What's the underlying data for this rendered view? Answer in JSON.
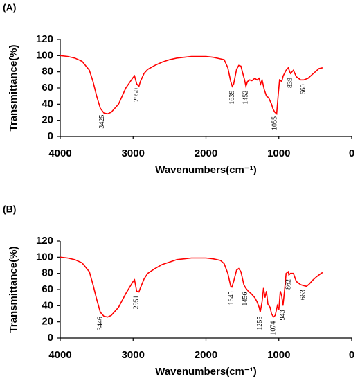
{
  "chart_data": [
    {
      "type": "line",
      "title": "(A)",
      "xlabel": "Wavenumbers(cm⁻¹)",
      "ylabel": "Transmittance(%)",
      "xlim": [
        4000,
        0
      ],
      "ylim": [
        0,
        120
      ],
      "xticks": [
        4000,
        3000,
        2000,
        1000,
        0
      ],
      "yticks": [
        0,
        20,
        40,
        60,
        80,
        100,
        120
      ],
      "grid": false,
      "color": "#ff0000",
      "x": [
        4000,
        3900,
        3800,
        3700,
        3600,
        3550,
        3500,
        3450,
        3400,
        3350,
        3300,
        3200,
        3100,
        3000,
        2980,
        2950,
        2920,
        2900,
        2850,
        2800,
        2700,
        2600,
        2500,
        2400,
        2300,
        2200,
        2000,
        1900,
        1800,
        1750,
        1700,
        1660,
        1639,
        1620,
        1580,
        1550,
        1520,
        1500,
        1470,
        1452,
        1430,
        1400,
        1370,
        1330,
        1300,
        1270,
        1250,
        1230,
        1200,
        1170,
        1140,
        1120,
        1100,
        1080,
        1055,
        1030,
        1010,
        990,
        960,
        940,
        900,
        870,
        850,
        839,
        800,
        760,
        700,
        660,
        600,
        550,
        500,
        450,
        400
      ],
      "values": [
        100,
        99,
        97,
        93,
        82,
        68,
        50,
        35,
        29,
        28,
        30,
        40,
        60,
        73,
        75,
        65,
        62,
        68,
        78,
        83,
        88,
        92,
        95,
        97,
        98,
        99,
        99,
        98,
        96,
        95,
        85,
        68,
        62,
        65,
        83,
        88,
        87,
        80,
        70,
        62,
        68,
        70,
        69,
        72,
        70,
        72,
        65,
        70,
        58,
        50,
        48,
        44,
        40,
        34,
        30,
        28,
        50,
        70,
        68,
        75,
        82,
        85,
        80,
        78,
        82,
        74,
        70,
        70,
        72,
        76,
        80,
        84,
        85
      ],
      "peak_labels": [
        3425,
        2950,
        1639,
        1452,
        1055,
        839,
        660
      ]
    },
    {
      "type": "line",
      "title": "(B)",
      "xlabel": "Wavenumbers(cm⁻¹)",
      "ylabel": "Transmittance(%)",
      "xlim": [
        4000,
        0
      ],
      "ylim": [
        0,
        120
      ],
      "xticks": [
        4000,
        3000,
        2000,
        1000,
        0
      ],
      "yticks": [
        0,
        20,
        40,
        60,
        80,
        100,
        120
      ],
      "grid": false,
      "color": "#ff0000",
      "x": [
        4000,
        3900,
        3800,
        3700,
        3600,
        3550,
        3500,
        3450,
        3400,
        3350,
        3300,
        3200,
        3100,
        3000,
        2980,
        2951,
        2920,
        2900,
        2850,
        2800,
        2700,
        2600,
        2500,
        2400,
        2300,
        2200,
        2000,
        1900,
        1800,
        1750,
        1700,
        1660,
        1645,
        1620,
        1580,
        1550,
        1520,
        1480,
        1456,
        1420,
        1380,
        1330,
        1300,
        1270,
        1255,
        1230,
        1210,
        1190,
        1170,
        1150,
        1120,
        1100,
        1074,
        1050,
        1020,
        1000,
        980,
        960,
        943,
        920,
        900,
        870,
        862,
        840,
        800,
        760,
        700,
        663,
        620,
        580,
        530,
        480,
        420,
        400
      ],
      "values": [
        100,
        99,
        97,
        93,
        82,
        66,
        48,
        32,
        27,
        26,
        28,
        38,
        55,
        70,
        72,
        58,
        57,
        62,
        73,
        80,
        86,
        91,
        94,
        97,
        98,
        99,
        99,
        98,
        96,
        92,
        80,
        64,
        63,
        70,
        84,
        86,
        82,
        66,
        62,
        58,
        55,
        50,
        45,
        38,
        32,
        45,
        62,
        50,
        58,
        42,
        38,
        30,
        26,
        28,
        40,
        35,
        58,
        52,
        40,
        60,
        80,
        82,
        78,
        80,
        80,
        70,
        66,
        65,
        64,
        67,
        72,
        76,
        80,
        81
      ],
      "peak_labels": [
        3446,
        2951,
        1645,
        1456,
        1255,
        1074,
        943,
        862,
        663
      ]
    }
  ]
}
